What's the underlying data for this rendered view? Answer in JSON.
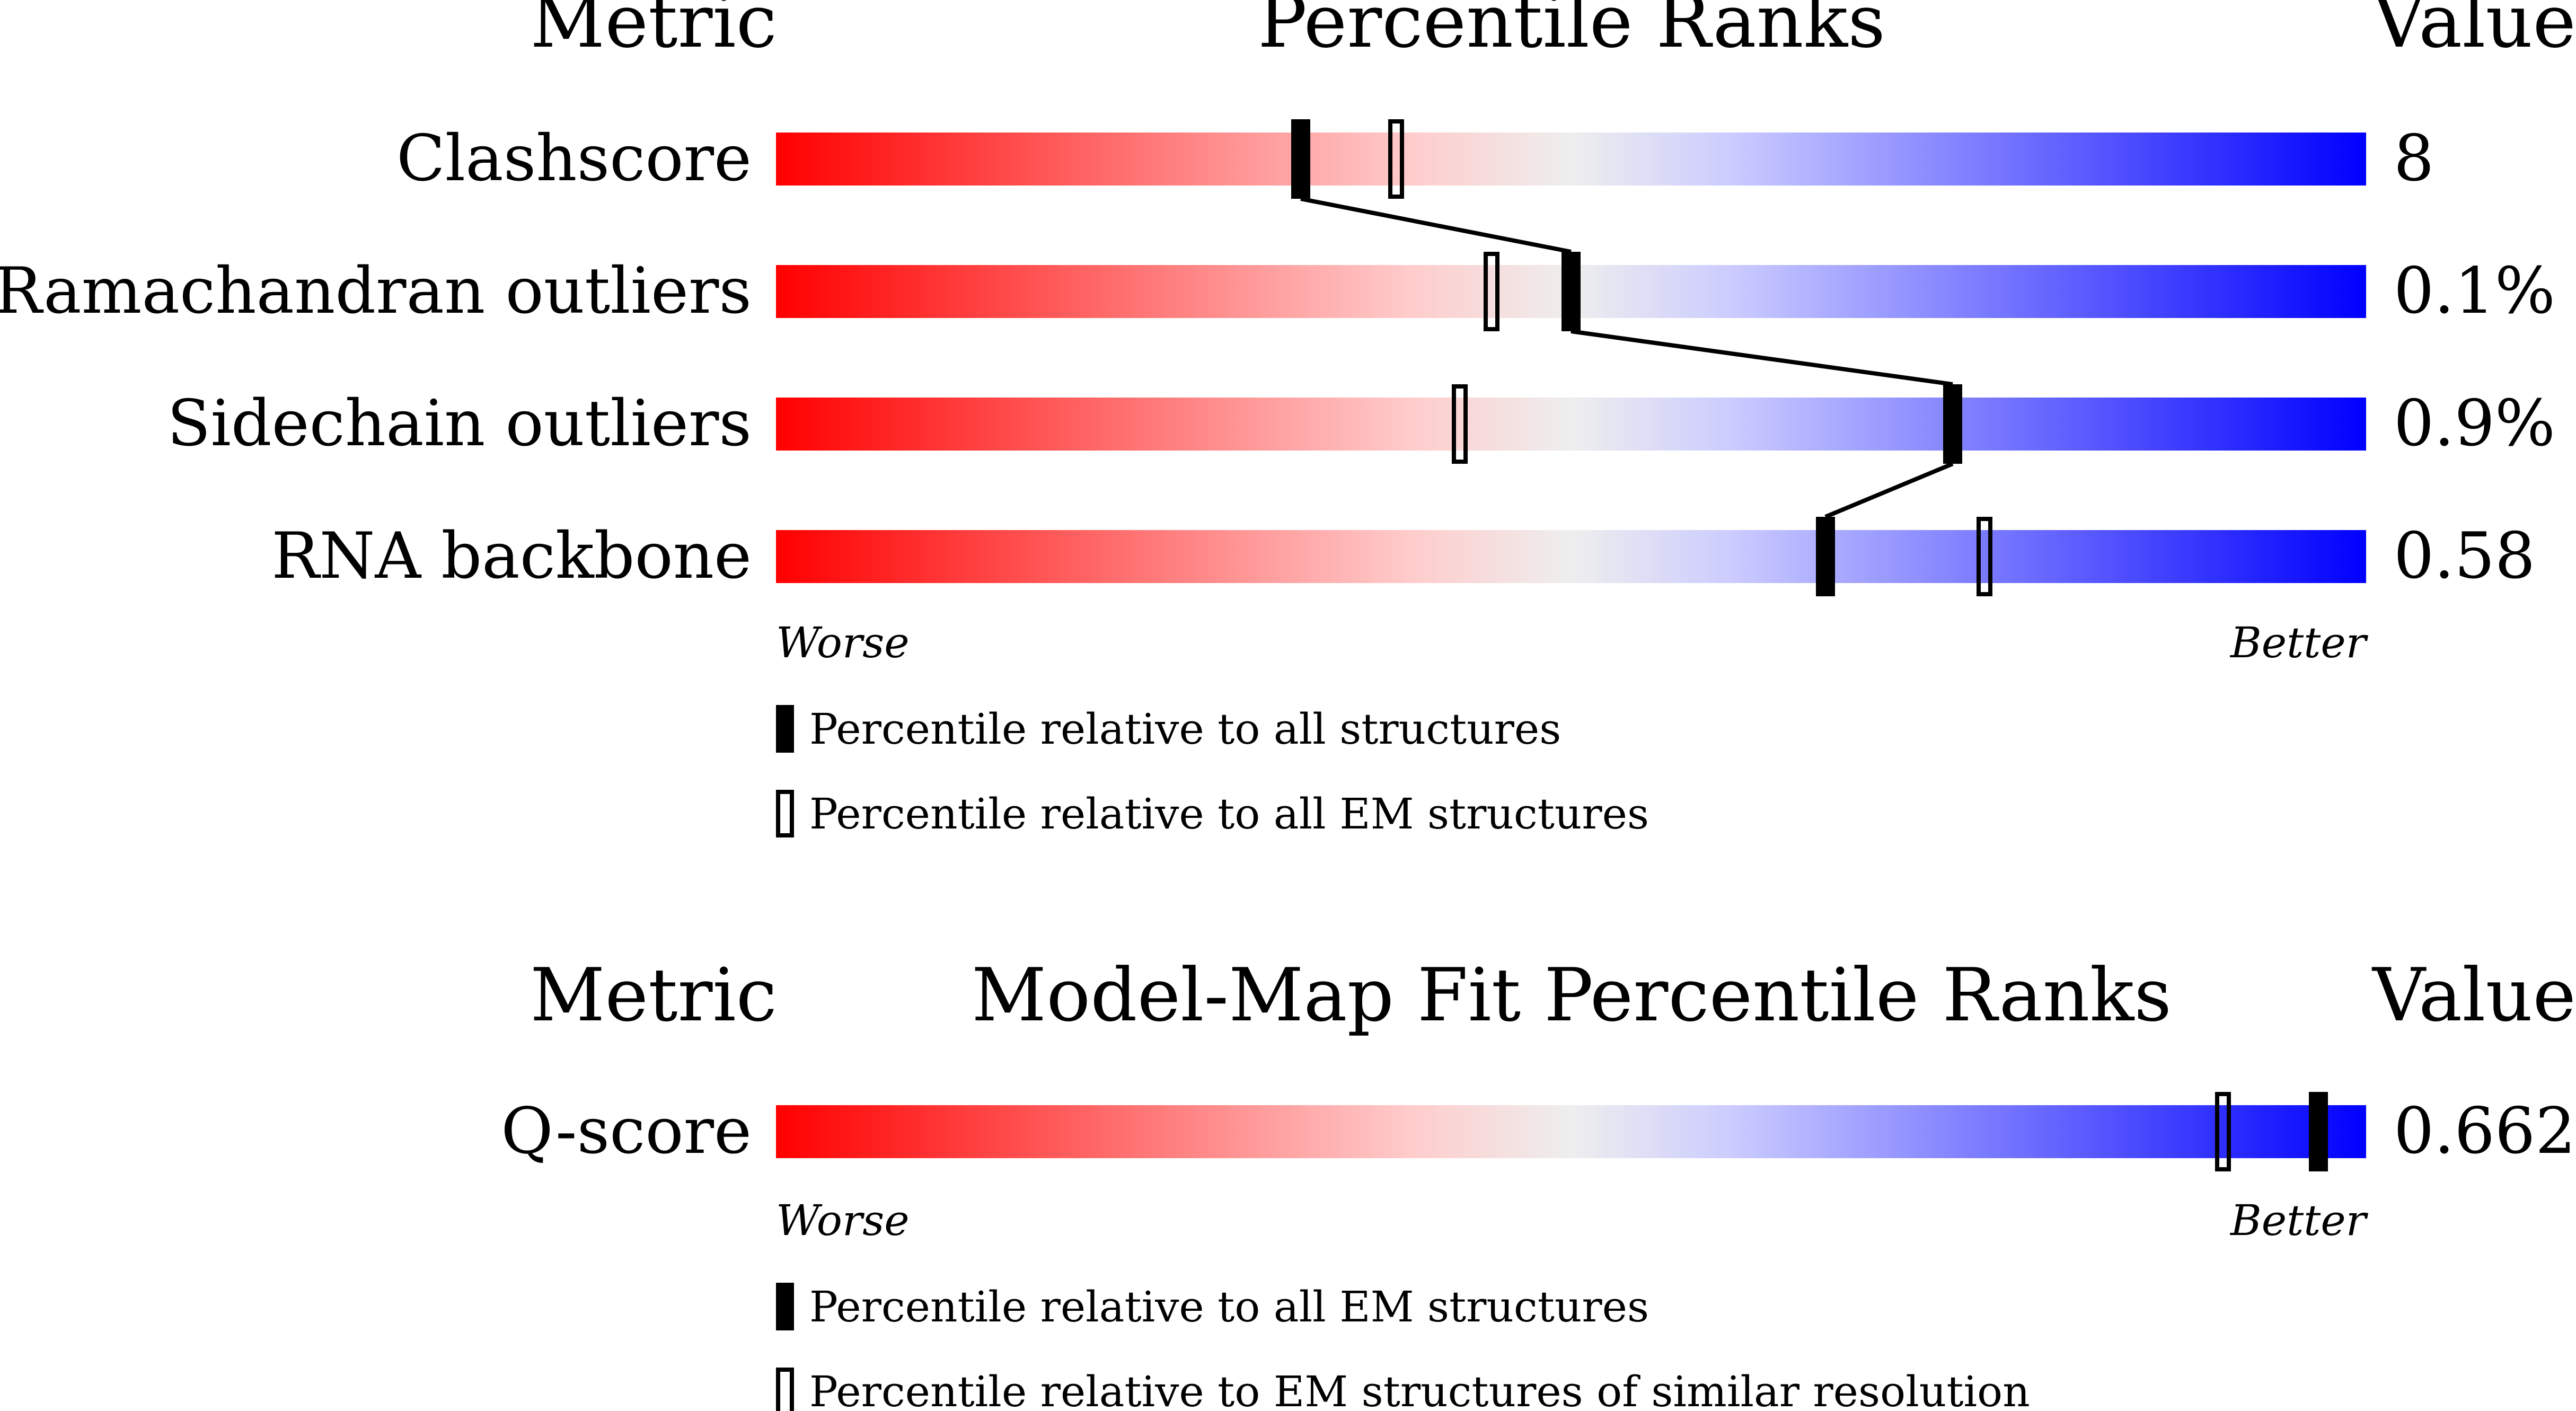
{
  "colors": {
    "worse": "#ff0000",
    "neutral": "#eeeeee",
    "better": "#0000ff",
    "mid_low": "#ffcccc",
    "mid_high": "#ccccff",
    "marker": "#000000",
    "background": "#ffffff"
  },
  "chart_data": [
    {
      "type": "percentile-rank-bars",
      "header": {
        "metric": "Metric",
        "title": "Percentile Ranks",
        "value": "Value"
      },
      "xlim": [
        0,
        100
      ],
      "axis_labels": {
        "worse": "Worse",
        "better": "Better"
      },
      "rows": [
        {
          "metric": "Clashscore",
          "value": "8",
          "percentile_all": 33,
          "percentile_secondary": 39
        },
        {
          "metric": "Ramachandran outliers",
          "value": "0.1%",
          "percentile_all": 50,
          "percentile_secondary": 45
        },
        {
          "metric": "Sidechain outliers",
          "value": "0.9%",
          "percentile_all": 74,
          "percentile_secondary": 43
        },
        {
          "metric": "RNA backbone",
          "value": "0.58",
          "percentile_all": 66,
          "percentile_secondary": 76
        }
      ],
      "connect_filled_markers": true,
      "legend": [
        {
          "marker": "filled",
          "label": "Percentile relative to all structures"
        },
        {
          "marker": "open",
          "label": "Percentile relative to all EM structures"
        }
      ]
    },
    {
      "type": "percentile-rank-bars",
      "header": {
        "metric": "Metric",
        "title": "Model-Map Fit Percentile Ranks",
        "value": "Value"
      },
      "xlim": [
        0,
        100
      ],
      "axis_labels": {
        "worse": "Worse",
        "better": "Better"
      },
      "rows": [
        {
          "metric": "Q-score",
          "value": "0.662",
          "percentile_all": 97,
          "percentile_secondary": 91
        }
      ],
      "connect_filled_markers": false,
      "legend": [
        {
          "marker": "filled",
          "label": "Percentile relative to all EM structures"
        },
        {
          "marker": "open",
          "label": "Percentile relative to EM structures of similar resolution"
        }
      ]
    }
  ]
}
